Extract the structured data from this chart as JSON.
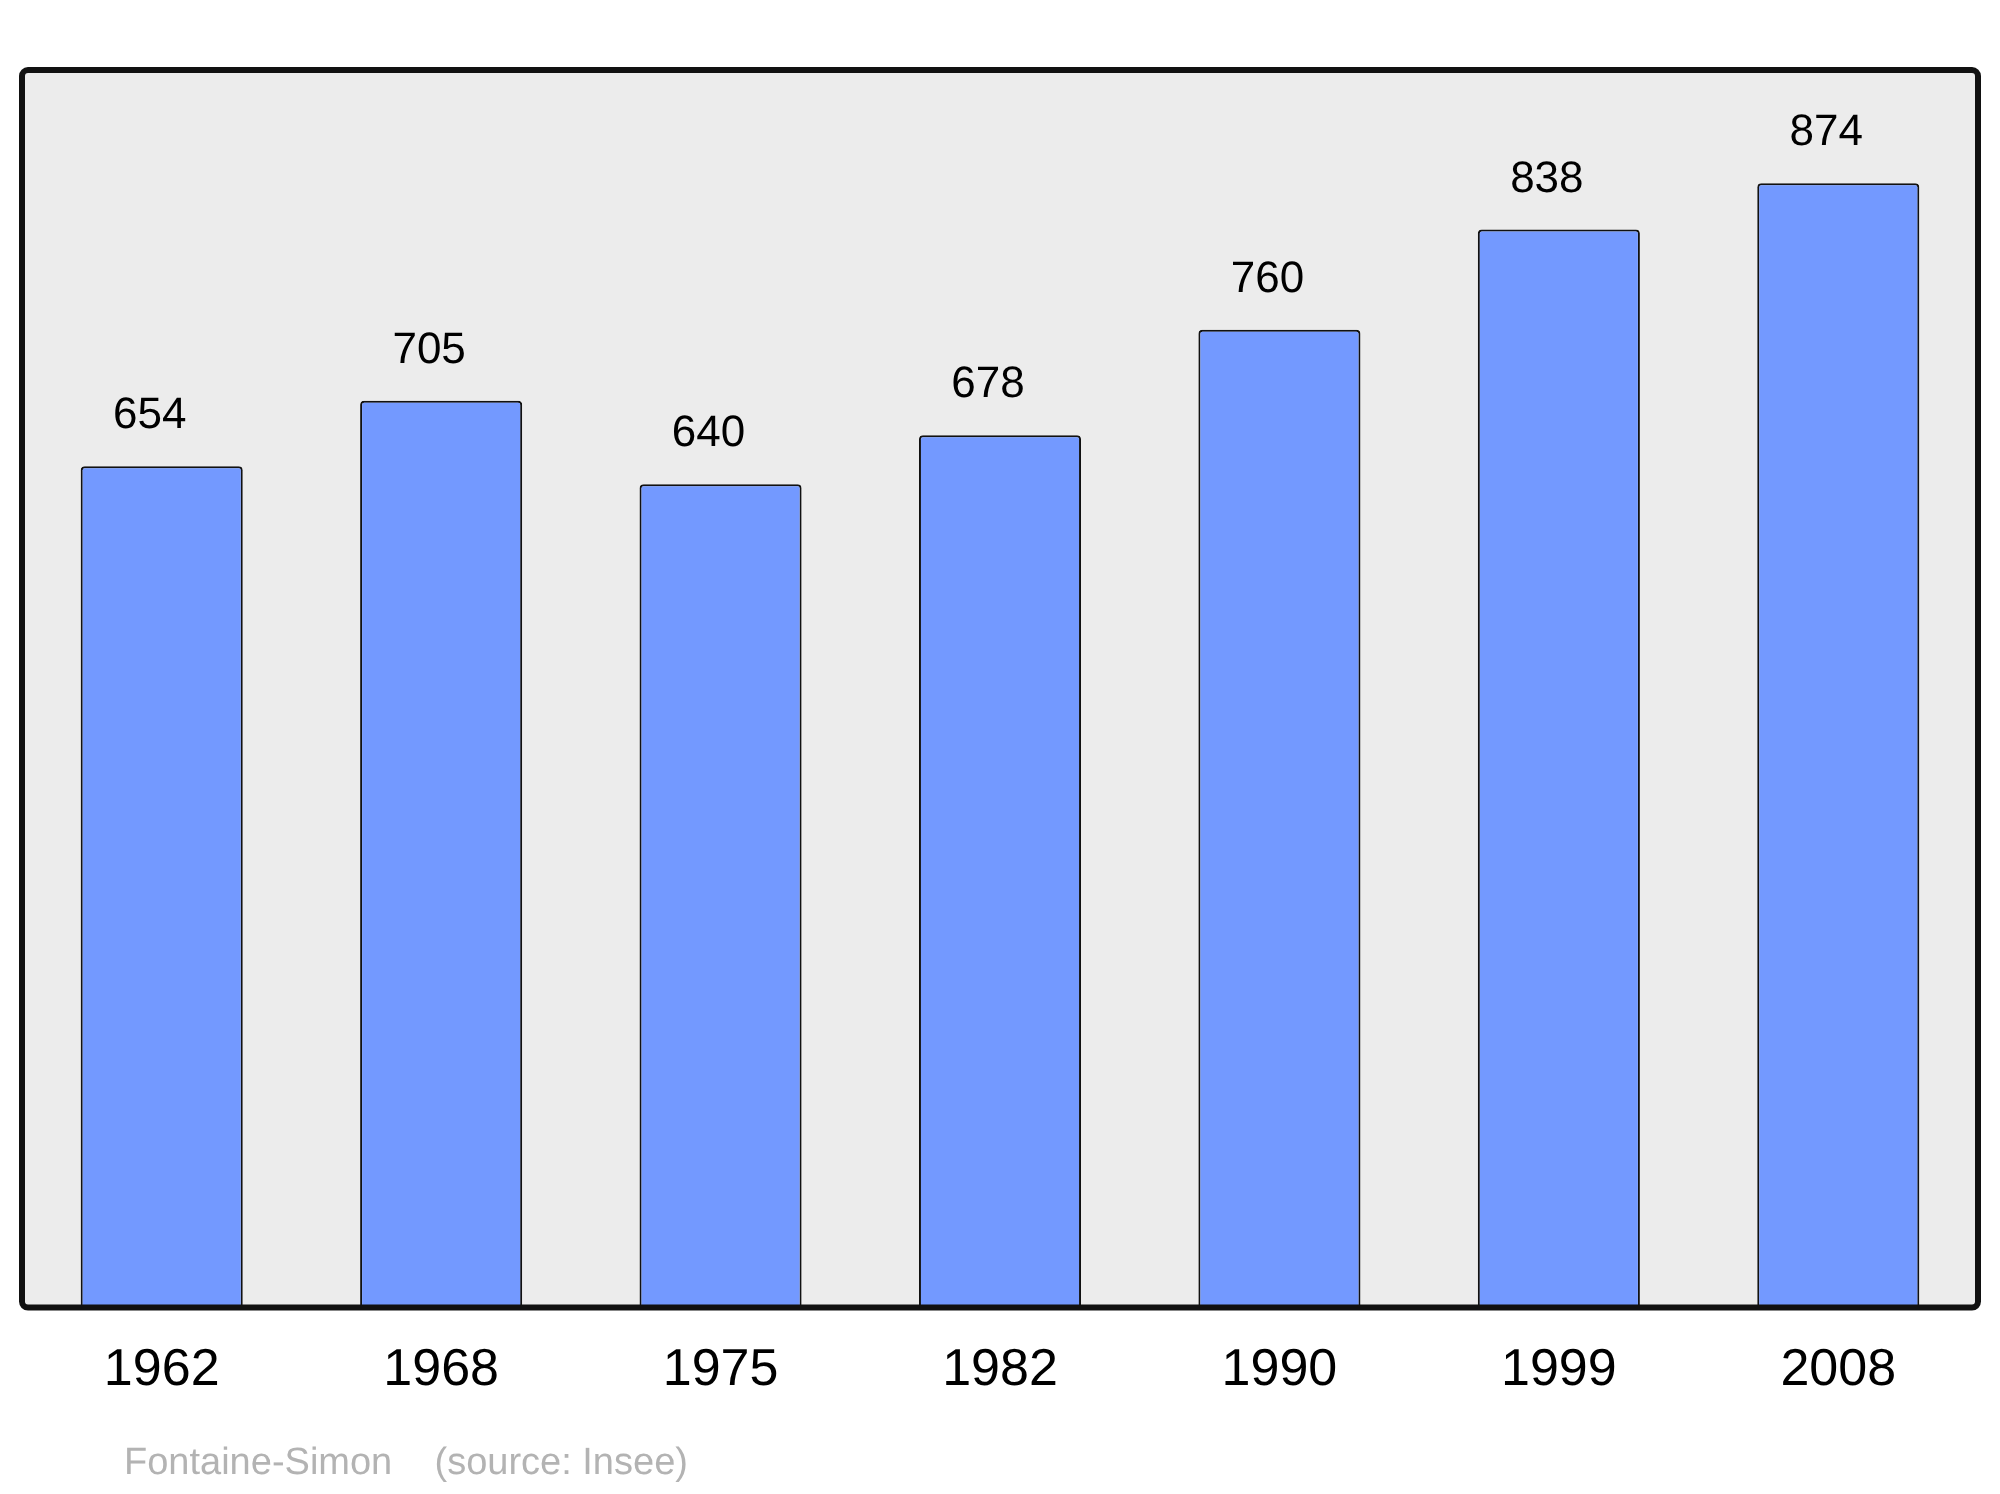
{
  "chart_data": {
    "type": "bar",
    "categories": [
      "1962",
      "1968",
      "1975",
      "1982",
      "1990",
      "1999",
      "2008"
    ],
    "values": [
      654,
      705,
      640,
      678,
      760,
      838,
      874
    ],
    "color": "#7399ff",
    "ylim": [
      0,
      962
    ],
    "data_labels": true,
    "grid": false,
    "legend": false,
    "annotations": [
      "Fontaine-Simon    (source: Insee)"
    ]
  }
}
